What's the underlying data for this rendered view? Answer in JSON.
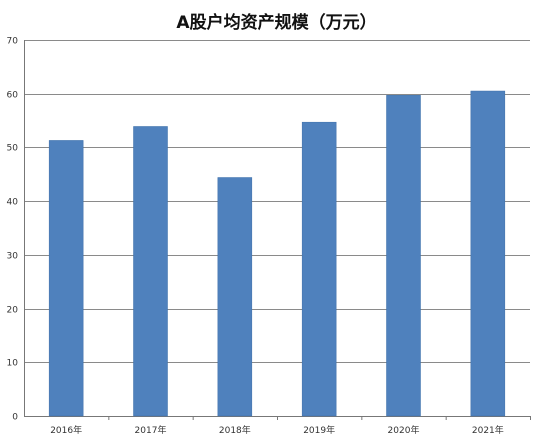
{
  "chart_data": {
    "type": "bar",
    "title": "A股户均资产规模（万元）",
    "categories": [
      "2016年",
      "2017年",
      "2018年",
      "2019年",
      "2020年",
      "2021年"
    ],
    "values": [
      51.3,
      53.9,
      44.4,
      54.7,
      59.7,
      60.5
    ],
    "ylim": [
      0,
      70
    ],
    "yticks": [
      0,
      10,
      20,
      30,
      40,
      50,
      60,
      70
    ],
    "grid": true,
    "legend": "none",
    "bar_color": "#4f81bd"
  }
}
